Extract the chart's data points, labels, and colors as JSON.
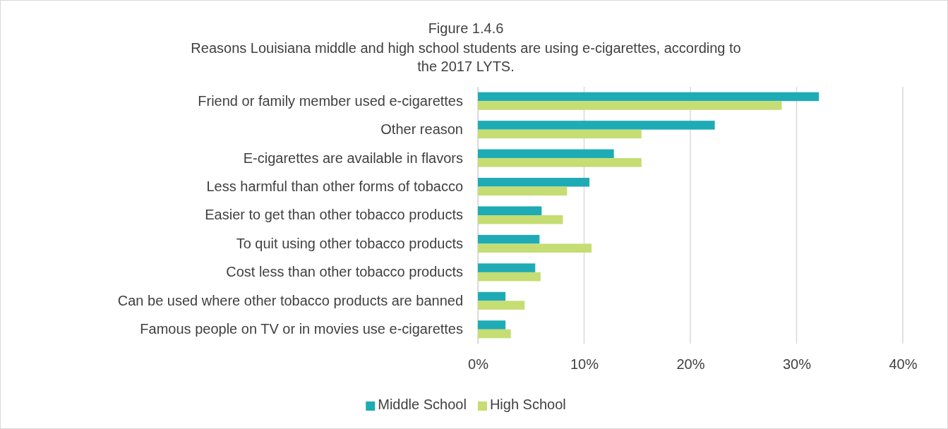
{
  "chart_data": {
    "type": "bar",
    "orientation": "horizontal",
    "title": "Figure 1.4.6",
    "subtitle": "Reasons Louisiana middle and high school students are using e-cigarettes, according to the 2017 LYTS.",
    "categories": [
      "Friend or family member used e-cigarettes",
      "Other reason",
      "E-cigarettes are available in flavors",
      "Less harmful than other forms of tobacco",
      "Easier to get than other tobacco products",
      "To quit using other tobacco products",
      "Cost less than other tobacco products",
      "Can be used where other tobacco products are banned",
      "Famous people on TV or in movies use e-cigarettes"
    ],
    "series": [
      {
        "name": "Middle School",
        "color": "#1fabb5",
        "values": [
          32.1,
          22.3,
          12.8,
          10.5,
          6.0,
          5.8,
          5.4,
          2.6,
          2.6
        ]
      },
      {
        "name": "High School",
        "color": "#c5dd72",
        "values": [
          28.6,
          15.4,
          15.4,
          8.4,
          8.0,
          10.7,
          5.9,
          4.4,
          3.1
        ]
      }
    ],
    "xlim": [
      0,
      40
    ],
    "xticks": [
      {
        "value": 0,
        "label": "0%"
      },
      {
        "value": 10,
        "label": "10%"
      },
      {
        "value": 20,
        "label": "20%"
      },
      {
        "value": 30,
        "label": "30%"
      },
      {
        "value": 40,
        "label": "40%"
      }
    ],
    "grid": "x",
    "legend": "bottom"
  }
}
